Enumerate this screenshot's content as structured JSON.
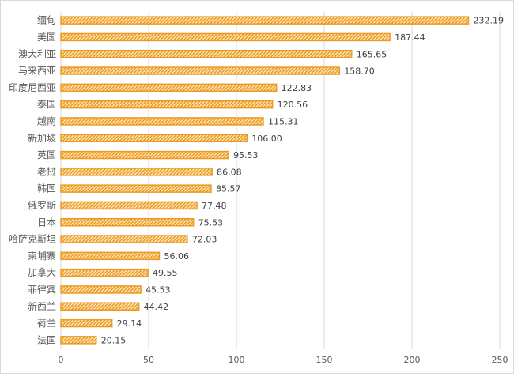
{
  "chart_data": {
    "type": "bar",
    "orientation": "horizontal",
    "title": "",
    "xlabel": "",
    "ylabel": "",
    "categories": [
      "缅甸",
      "美国",
      "澳大利亚",
      "马来西亚",
      "印度尼西亚",
      "泰国",
      "越南",
      "新加坡",
      "英国",
      "老挝",
      "韩国",
      "俄罗斯",
      "日本",
      "哈萨克斯坦",
      "柬埔寨",
      "加拿大",
      "菲律宾",
      "新西兰",
      "荷兰",
      "法国"
    ],
    "values": [
      232.19,
      187.44,
      165.65,
      158.7,
      122.83,
      120.56,
      115.31,
      106.0,
      95.53,
      86.08,
      85.57,
      77.48,
      75.53,
      72.03,
      56.06,
      49.55,
      45.53,
      44.42,
      29.14,
      20.15
    ],
    "value_labels": [
      "232.19",
      "187.44",
      "165.65",
      "158.70",
      "122.83",
      "120.56",
      "115.31",
      "106.00",
      "95.53",
      "86.08",
      "85.57",
      "77.48",
      "75.53",
      "72.03",
      "56.06",
      "49.55",
      "45.53",
      "44.42",
      "29.14",
      "20.15"
    ],
    "xlim": [
      0,
      250
    ],
    "xticks": [
      "0",
      "50",
      "100",
      "150",
      "200",
      "250"
    ],
    "grid": true,
    "legend": "none",
    "bar_color": "#ED9B1F",
    "pattern": "diagonal-stripes"
  }
}
